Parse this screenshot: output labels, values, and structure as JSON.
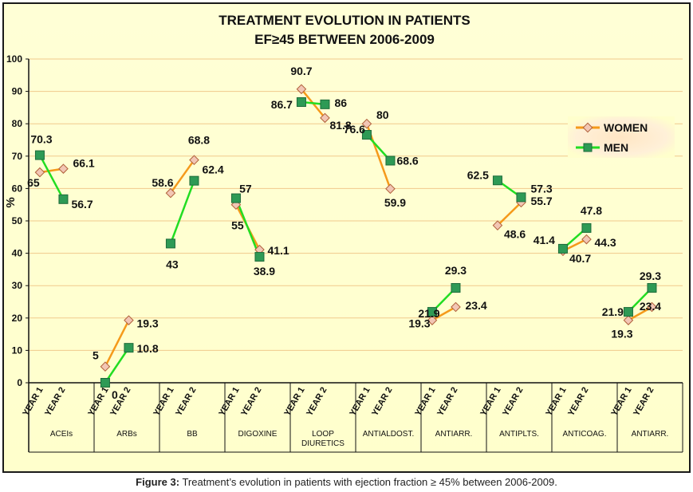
{
  "caption": {
    "label": "Figure 3:",
    "text": "Treatment’s evolution in patients with ejection fraction ≥ 45% between 2006-2009."
  },
  "chart_data": {
    "type": "line",
    "title_line1": "TREATMENT EVOLUTION IN PATIENTS",
    "title_line2": "EF≥45 BETWEEN 2006-2009",
    "ylabel": "%",
    "ylim": [
      0,
      100
    ],
    "yticks": [
      "0",
      "10",
      "20",
      "30",
      "40",
      "50",
      "60",
      "70",
      "80",
      "90",
      "100"
    ],
    "grid": true,
    "legend_position": "top-right",
    "year_labels": [
      "YEAR 1",
      "YEAR 2"
    ],
    "groups": [
      {
        "label": "ACEIs"
      },
      {
        "label": "ARBs"
      },
      {
        "label": "BB"
      },
      {
        "label": "DIGOXINE"
      },
      {
        "label": "LOOP DIURETICS"
      },
      {
        "label": "ANTIALDOST."
      },
      {
        "label": "ANTIARR."
      },
      {
        "label": "ANTIPLTS."
      },
      {
        "label": "ANTICOAG."
      },
      {
        "label": "ANTIARR."
      }
    ],
    "series": [
      {
        "name": "WOMEN",
        "marker": "diamond",
        "line_color": "#f59a1b",
        "marker_fill": "#f2c6b4",
        "marker_stroke": "#b0603a",
        "values": [
          [
            65,
            66.1
          ],
          [
            5,
            19.3
          ],
          [
            58.6,
            68.8
          ],
          [
            55,
            41.1
          ],
          [
            90.7,
            81.8
          ],
          [
            80,
            59.9
          ],
          [
            19.3,
            23.4
          ],
          [
            48.6,
            55.7
          ],
          [
            40.7,
            44.3
          ],
          [
            19.3,
            23.4
          ]
        ]
      },
      {
        "name": "MEN",
        "marker": "square",
        "line_color": "#22dd22",
        "marker_fill": "#2e9a55",
        "marker_stroke": "#1d6b3a",
        "values": [
          [
            70.3,
            56.7
          ],
          [
            0,
            10.8
          ],
          [
            43,
            62.4
          ],
          [
            57,
            38.9
          ],
          [
            86.7,
            86
          ],
          [
            76.6,
            68.6
          ],
          [
            21.9,
            29.3
          ],
          [
            62.5,
            57.3
          ],
          [
            41.4,
            47.8
          ],
          [
            21.9,
            29.3
          ]
        ]
      }
    ]
  }
}
